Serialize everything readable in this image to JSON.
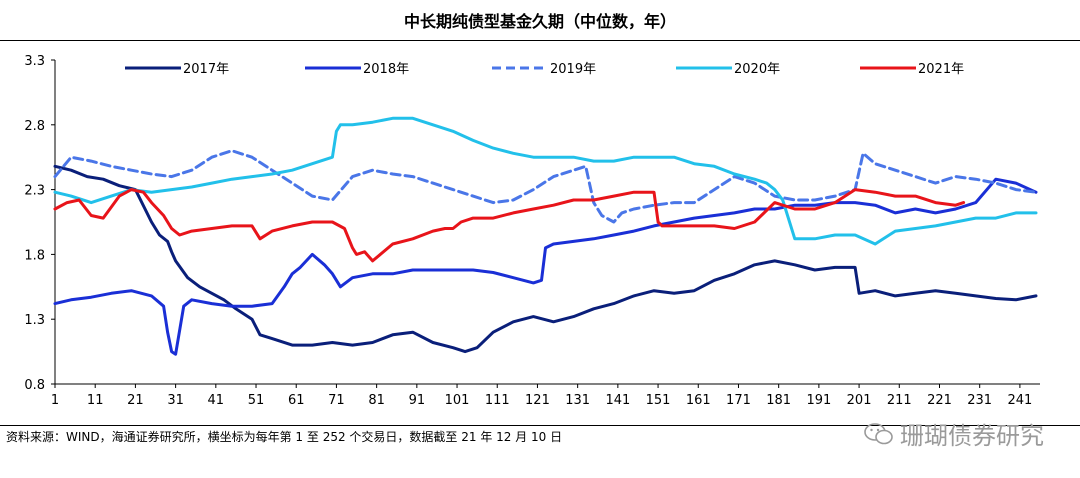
{
  "page": {
    "source": "资料来源：WIND，海通证券研究所，横坐标为每年第 1 至 252 个交易日，数据截至 21 年 12 月 10 日",
    "watermark": "珊瑚债券研究"
  },
  "chart_data": {
    "type": "line",
    "title": "中长期纯债型基金久期（中位数，年）",
    "xlabel": "",
    "ylabel": "",
    "ylim": [
      0.8,
      3.3
    ],
    "yticks": [
      0.8,
      1.3,
      1.8,
      2.3,
      2.8,
      3.3
    ],
    "xlim": [
      1,
      246
    ],
    "xticks": [
      1,
      11,
      21,
      31,
      41,
      51,
      61,
      71,
      81,
      91,
      101,
      111,
      121,
      131,
      141,
      151,
      161,
      171,
      181,
      191,
      201,
      211,
      221,
      231,
      241
    ],
    "legend": "top",
    "grid": false,
    "series": [
      {
        "name": "2017年",
        "color": "#0a1f7a",
        "dash": "",
        "x": [
          1,
          5,
          9,
          13,
          17,
          21,
          25,
          27,
          29,
          30,
          31,
          34,
          37,
          40,
          43,
          46,
          50,
          52,
          55,
          60,
          65,
          70,
          75,
          80,
          85,
          90,
          95,
          100,
          103,
          106,
          110,
          115,
          120,
          125,
          130,
          135,
          140,
          145,
          150,
          155,
          160,
          165,
          170,
          175,
          180,
          185,
          190,
          195,
          200,
          201,
          205,
          210,
          215,
          220,
          225,
          230,
          235,
          240,
          245
        ],
        "y": [
          2.48,
          2.45,
          2.4,
          2.38,
          2.33,
          2.3,
          2.05,
          1.95,
          1.9,
          1.82,
          1.75,
          1.62,
          1.55,
          1.5,
          1.45,
          1.38,
          1.3,
          1.18,
          1.15,
          1.1,
          1.1,
          1.12,
          1.1,
          1.12,
          1.18,
          1.2,
          1.12,
          1.08,
          1.05,
          1.08,
          1.2,
          1.28,
          1.32,
          1.28,
          1.32,
          1.38,
          1.42,
          1.48,
          1.52,
          1.5,
          1.52,
          1.6,
          1.65,
          1.72,
          1.75,
          1.72,
          1.68,
          1.7,
          1.7,
          1.5,
          1.52,
          1.48,
          1.5,
          1.52,
          1.5,
          1.48,
          1.46,
          1.45,
          1.48
        ]
      },
      {
        "name": "2018年",
        "color": "#1a2fd6",
        "dash": "",
        "x": [
          1,
          5,
          10,
          15,
          20,
          25,
          28,
          29,
          30,
          31,
          33,
          35,
          40,
          45,
          50,
          55,
          58,
          60,
          62,
          65,
          68,
          70,
          72,
          75,
          80,
          85,
          90,
          95,
          100,
          105,
          110,
          115,
          120,
          122,
          123,
          125,
          130,
          135,
          140,
          145,
          150,
          155,
          160,
          165,
          170,
          175,
          180,
          185,
          190,
          195,
          200,
          205,
          210,
          215,
          220,
          225,
          230,
          235,
          240,
          245
        ],
        "y": [
          1.42,
          1.45,
          1.47,
          1.5,
          1.52,
          1.48,
          1.4,
          1.2,
          1.05,
          1.03,
          1.4,
          1.45,
          1.42,
          1.4,
          1.4,
          1.42,
          1.55,
          1.65,
          1.7,
          1.8,
          1.72,
          1.65,
          1.55,
          1.62,
          1.65,
          1.65,
          1.68,
          1.68,
          1.68,
          1.68,
          1.66,
          1.62,
          1.58,
          1.6,
          1.85,
          1.88,
          1.9,
          1.92,
          1.95,
          1.98,
          2.02,
          2.05,
          2.08,
          2.1,
          2.12,
          2.15,
          2.15,
          2.18,
          2.18,
          2.2,
          2.2,
          2.18,
          2.12,
          2.15,
          2.12,
          2.15,
          2.2,
          2.38,
          2.35,
          2.28
        ]
      },
      {
        "name": "2019年",
        "color": "#4a76e8",
        "dash": "9,5",
        "x": [
          1,
          5,
          10,
          15,
          20,
          25,
          30,
          35,
          40,
          45,
          50,
          55,
          60,
          65,
          70,
          75,
          80,
          85,
          90,
          95,
          100,
          105,
          110,
          115,
          120,
          125,
          130,
          133,
          135,
          137,
          140,
          142,
          145,
          150,
          155,
          160,
          165,
          170,
          175,
          180,
          185,
          190,
          195,
          200,
          202,
          205,
          210,
          215,
          220,
          225,
          230,
          235,
          240,
          245
        ],
        "y": [
          2.4,
          2.55,
          2.52,
          2.48,
          2.45,
          2.42,
          2.4,
          2.45,
          2.55,
          2.6,
          2.55,
          2.45,
          2.35,
          2.25,
          2.22,
          2.4,
          2.45,
          2.42,
          2.4,
          2.35,
          2.3,
          2.25,
          2.2,
          2.22,
          2.3,
          2.4,
          2.45,
          2.48,
          2.2,
          2.1,
          2.05,
          2.12,
          2.15,
          2.18,
          2.2,
          2.2,
          2.3,
          2.4,
          2.35,
          2.25,
          2.22,
          2.22,
          2.25,
          2.3,
          2.58,
          2.5,
          2.45,
          2.4,
          2.35,
          2.4,
          2.38,
          2.35,
          2.3,
          2.28
        ]
      },
      {
        "name": "2020年",
        "color": "#22c0ea",
        "dash": "",
        "x": [
          1,
          5,
          10,
          15,
          20,
          25,
          30,
          35,
          40,
          45,
          50,
          55,
          60,
          65,
          70,
          71,
          72,
          75,
          80,
          85,
          90,
          95,
          100,
          105,
          110,
          115,
          120,
          125,
          130,
          135,
          140,
          145,
          150,
          155,
          160,
          165,
          170,
          175,
          178,
          180,
          182,
          185,
          190,
          195,
          200,
          205,
          210,
          215,
          220,
          225,
          230,
          235,
          240,
          245
        ],
        "y": [
          2.28,
          2.25,
          2.2,
          2.25,
          2.3,
          2.28,
          2.3,
          2.32,
          2.35,
          2.38,
          2.4,
          2.42,
          2.45,
          2.5,
          2.55,
          2.75,
          2.8,
          2.8,
          2.82,
          2.85,
          2.85,
          2.8,
          2.75,
          2.68,
          2.62,
          2.58,
          2.55,
          2.55,
          2.55,
          2.52,
          2.52,
          2.55,
          2.55,
          2.55,
          2.5,
          2.48,
          2.42,
          2.38,
          2.35,
          2.3,
          2.22,
          1.92,
          1.92,
          1.95,
          1.95,
          1.88,
          1.98,
          2.0,
          2.02,
          2.05,
          2.08,
          2.08,
          2.12,
          2.12
        ]
      },
      {
        "name": "2021年",
        "color": "#e8141a",
        "dash": "",
        "x": [
          1,
          4,
          7,
          10,
          13,
          17,
          20,
          23,
          25,
          28,
          30,
          32,
          35,
          40,
          45,
          50,
          52,
          55,
          60,
          65,
          70,
          73,
          75,
          76,
          78,
          80,
          85,
          90,
          95,
          98,
          100,
          102,
          105,
          110,
          115,
          120,
          125,
          130,
          135,
          140,
          145,
          150,
          151,
          152,
          155,
          160,
          165,
          170,
          175,
          180,
          185,
          190,
          195,
          200,
          205,
          210,
          215,
          220,
          225,
          227
        ],
        "y": [
          2.15,
          2.2,
          2.22,
          2.1,
          2.08,
          2.25,
          2.3,
          2.28,
          2.2,
          2.1,
          2.0,
          1.95,
          1.98,
          2.0,
          2.02,
          2.02,
          1.92,
          1.98,
          2.02,
          2.05,
          2.05,
          2.0,
          1.85,
          1.8,
          1.82,
          1.75,
          1.88,
          1.92,
          1.98,
          2.0,
          2.0,
          2.05,
          2.08,
          2.08,
          2.12,
          2.15,
          2.18,
          2.22,
          2.22,
          2.25,
          2.28,
          2.28,
          2.05,
          2.02,
          2.02,
          2.02,
          2.02,
          2.0,
          2.05,
          2.2,
          2.15,
          2.15,
          2.2,
          2.3,
          2.28,
          2.25,
          2.25,
          2.2,
          2.18,
          2.2
        ]
      }
    ]
  }
}
